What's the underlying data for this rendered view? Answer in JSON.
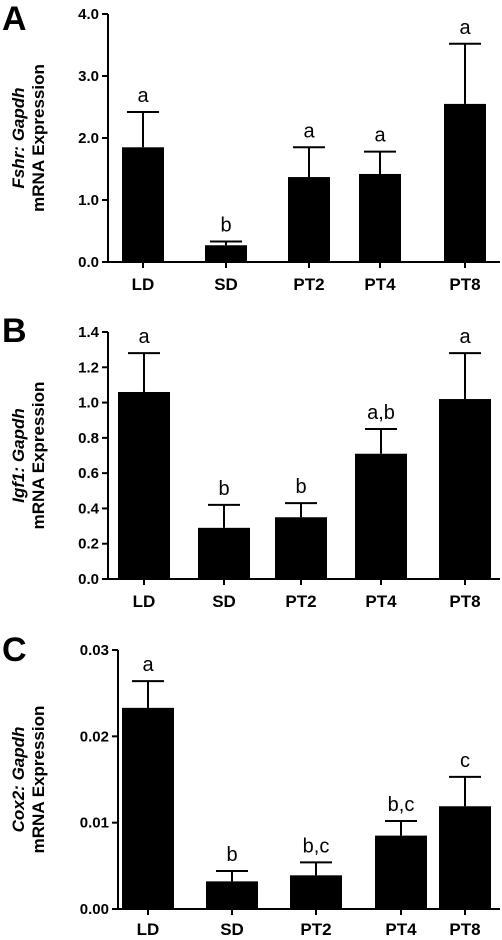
{
  "chart_data": [
    {
      "type": "bar",
      "panel_label": "A",
      "gene": "Fshr",
      "ylabel_line1": "Fshr: Gapdh",
      "ylabel_line2": "mRNA Expression",
      "categories": [
        "LD",
        "SD",
        "PT2",
        "PT4",
        "PT8"
      ],
      "values": [
        1.85,
        0.27,
        1.37,
        1.42,
        2.55
      ],
      "errors": [
        0.57,
        0.06,
        0.48,
        0.36,
        0.97
      ],
      "significance": [
        "a",
        "b",
        "a",
        "a",
        "a"
      ],
      "ylim": [
        0,
        4.0
      ],
      "yticks": [
        "0.0",
        "1.0",
        "2.0",
        "3.0",
        "4.0"
      ],
      "ytick_values": [
        0,
        1,
        2,
        3,
        4
      ],
      "bar_color": "#000000"
    },
    {
      "type": "bar",
      "panel_label": "B",
      "gene": "Igf1",
      "ylabel_line1": "Igf1: Gapdh",
      "ylabel_line2": "mRNA Expression",
      "categories": [
        "LD",
        "SD",
        "PT2",
        "PT4",
        "PT8"
      ],
      "values": [
        1.06,
        0.29,
        0.35,
        0.71,
        1.02
      ],
      "errors": [
        0.22,
        0.13,
        0.08,
        0.14,
        0.26
      ],
      "significance": [
        "a",
        "b",
        "b",
        "a,b",
        "a"
      ],
      "ylim": [
        0,
        1.4
      ],
      "yticks": [
        "0.0",
        "0.2",
        "0.4",
        "0.6",
        "0.8",
        "1.0",
        "1.2",
        "1.4"
      ],
      "ytick_values": [
        0,
        0.2,
        0.4,
        0.6,
        0.8,
        1.0,
        1.2,
        1.4
      ],
      "bar_color": "#000000"
    },
    {
      "type": "bar",
      "panel_label": "C",
      "gene": "Cox2",
      "ylabel_line1": "Cox2: Gapdh",
      "ylabel_line2": "mRNA Expression",
      "categories": [
        "LD",
        "SD",
        "PT2",
        "PT4",
        "PT8"
      ],
      "values": [
        0.0233,
        0.0032,
        0.0039,
        0.0085,
        0.0119
      ],
      "errors": [
        0.0031,
        0.0012,
        0.0015,
        0.0017,
        0.0034
      ],
      "significance": [
        "a",
        "b",
        "b,c",
        "b,c",
        "c"
      ],
      "ylim": [
        0,
        0.03
      ],
      "yticks": [
        "0.00",
        "0.01",
        "0.02",
        "0.03"
      ],
      "ytick_values": [
        0,
        0.01,
        0.02,
        0.03
      ],
      "bar_color": "#000000"
    }
  ]
}
